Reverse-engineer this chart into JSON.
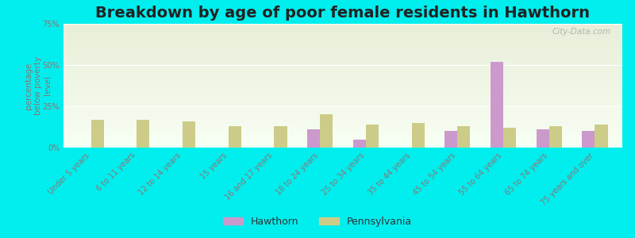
{
  "title": "Breakdown by age of poor female residents in Hawthorn",
  "ylabel": "percentage\nbelow poverty\nlevel",
  "categories": [
    "Under 5 years",
    "6 to 11 years",
    "12 to 14 years",
    "15 years",
    "16 and 17 years",
    "18 to 24 years",
    "25 to 34 years",
    "35 to 44 years",
    "45 to 54 years",
    "55 to 64 years",
    "65 to 74 years",
    "75 years and over"
  ],
  "hawthorn": [
    0,
    0,
    0,
    0,
    0,
    11,
    5,
    0,
    10,
    52,
    11,
    10
  ],
  "pennsylvania": [
    17,
    17,
    16,
    13,
    13,
    20,
    14,
    15,
    13,
    12,
    13,
    14
  ],
  "hawthorn_color": "#cc99cc",
  "pennsylvania_color": "#cccc88",
  "background_color": "#00eeee",
  "plot_bg_top": "#e8eed8",
  "plot_bg_bottom": "#f8fff4",
  "ylim": [
    0,
    75
  ],
  "yticks": [
    0,
    25,
    50,
    75
  ],
  "ytick_labels": [
    "0%",
    "25%",
    "50%",
    "75%"
  ],
  "title_fontsize": 14,
  "axis_label_fontsize": 7.5,
  "tick_fontsize": 7,
  "bar_width": 0.28,
  "legend_hawthorn": "Hawthorn",
  "legend_pennsylvania": "Pennsylvania",
  "legend_fontsize": 9,
  "watermark": "City-Data.com"
}
